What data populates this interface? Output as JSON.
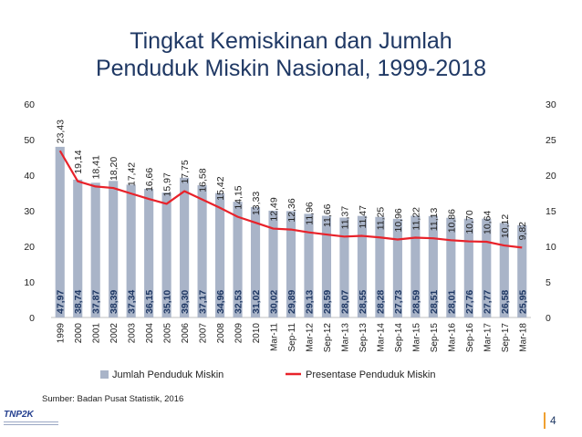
{
  "title_line1": "Tingkat Kemiskinan dan Jumlah",
  "title_line2": "Penduduk Miskin Nasional, 1999-2018",
  "source": "Sumber: Badan Pusat Statistik, 2016",
  "page_number": "4",
  "logo_text": "TNP2K",
  "colors": {
    "bar": "#a9b4c8",
    "line": "#e8222a",
    "title": "#1f3864",
    "accent": "#f0a030"
  },
  "chart_data": {
    "type": "bar",
    "title": "Tingkat Kemiskinan dan Jumlah Penduduk Miskin Nasional, 1999-2018",
    "categories": [
      "1999",
      "2000",
      "2001",
      "2002",
      "2003",
      "2004",
      "2005",
      "2006",
      "2007",
      "2008",
      "2009",
      "2010",
      "Mar-11",
      "Sep-11",
      "Mar-12",
      "Sep-12",
      "Mar-13",
      "Sep-13",
      "Mar-14",
      "Sep-14",
      "Mar-15",
      "Sep-15",
      "Mar-16",
      "Sep-16",
      "Mar-17",
      "Sep-17",
      "Mar-18"
    ],
    "series": [
      {
        "name": "Jumlah Penduduk Miskin",
        "type": "bar",
        "axis": "left",
        "values": [
          47.97,
          38.74,
          37.87,
          38.39,
          37.34,
          36.15,
          35.1,
          39.3,
          37.17,
          34.96,
          32.53,
          31.02,
          30.02,
          29.89,
          29.13,
          28.59,
          28.07,
          28.55,
          28.28,
          27.73,
          28.59,
          28.51,
          28.01,
          27.76,
          27.77,
          26.58,
          25.95
        ],
        "labels": [
          "47,97",
          "38,74",
          "37,87",
          "38,39",
          "37,34",
          "36,15",
          "35,10",
          "39,30",
          "37,17",
          "34,96",
          "32,53",
          "31,02",
          "30,02",
          "29,89",
          "29,13",
          "28,59",
          "28,07",
          "28,55",
          "28,28",
          "27,73",
          "28,59",
          "28,51",
          "28,01",
          "27,76",
          "27,77",
          "26,58",
          "25,95"
        ]
      },
      {
        "name": "Presentase Penduduk Miskin",
        "type": "line",
        "axis": "right",
        "values": [
          23.43,
          19.14,
          18.41,
          18.2,
          17.42,
          16.66,
          15.97,
          17.75,
          16.58,
          15.42,
          14.15,
          13.33,
          12.49,
          12.36,
          11.96,
          11.66,
          11.37,
          11.47,
          11.25,
          10.96,
          11.22,
          11.13,
          10.86,
          10.7,
          10.64,
          10.12,
          9.82
        ],
        "labels": [
          "23,43",
          "19,14",
          "18,41",
          "18,20",
          "17,42",
          "16,66",
          "15,97",
          "17,75",
          "16,58",
          "15,42",
          "14,15",
          "13,33",
          "12,49",
          "12,36",
          "11,96",
          "11,66",
          "11,37",
          "11,47",
          "11,25",
          "10,96",
          "11,22",
          "11,13",
          "10,86",
          "10,70",
          "10,64",
          "10,12",
          "9,82"
        ]
      }
    ],
    "ylim_left": [
      0,
      60
    ],
    "yticks_left": [
      "0",
      "10",
      "20",
      "30",
      "40",
      "50",
      "60"
    ],
    "ylim_right": [
      0,
      30
    ],
    "yticks_right": [
      "0",
      "5",
      "10",
      "15",
      "20",
      "25",
      "30"
    ],
    "grid": false,
    "legend_position": "bottom"
  }
}
